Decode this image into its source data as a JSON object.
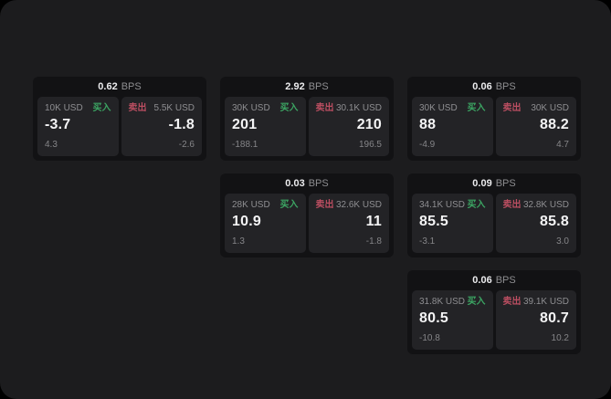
{
  "colors": {
    "page_bg": "#1c1c1e",
    "card_bg": "#121214",
    "panel_bg": "#232326",
    "buy_green": "#3ca563",
    "sell_red": "#bb4e61",
    "value_white": "#f4f4f5",
    "label_gray": "#8e8e91",
    "sub_gray": "#858588"
  },
  "cards": [
    {
      "grid": {
        "col": 1,
        "row": 1
      },
      "bps_value": "0.62",
      "bps_unit": "BPS",
      "buy": {
        "size": "10K USD",
        "label": "买入",
        "value": "-3.7",
        "sub": "4.3"
      },
      "sell": {
        "label": "卖出",
        "size": "5.5K USD",
        "value": "-1.8",
        "sub": "-2.6"
      }
    },
    {
      "grid": {
        "col": 2,
        "row": 1
      },
      "bps_value": "2.92",
      "bps_unit": "BPS",
      "buy": {
        "size": "30K USD",
        "label": "买入",
        "value": "201",
        "sub": "-188.1"
      },
      "sell": {
        "label": "卖出",
        "size": "30.1K USD",
        "value": "210",
        "sub": "196.5"
      }
    },
    {
      "grid": {
        "col": 3,
        "row": 1
      },
      "bps_value": "0.06",
      "bps_unit": "BPS",
      "buy": {
        "size": "30K USD",
        "label": "买入",
        "value": "88",
        "sub": "-4.9"
      },
      "sell": {
        "label": "卖出",
        "size": "30K USD",
        "value": "88.2",
        "sub": "4.7"
      }
    },
    {
      "grid": {
        "col": 2,
        "row": 2
      },
      "bps_value": "0.03",
      "bps_unit": "BPS",
      "buy": {
        "size": "28K USD",
        "label": "买入",
        "value": "10.9",
        "sub": "1.3"
      },
      "sell": {
        "label": "卖出",
        "size": "32.6K USD",
        "value": "11",
        "sub": "-1.8"
      }
    },
    {
      "grid": {
        "col": 3,
        "row": 2
      },
      "bps_value": "0.09",
      "bps_unit": "BPS",
      "buy": {
        "size": "34.1K USD",
        "label": "买入",
        "value": "85.5",
        "sub": "-3.1"
      },
      "sell": {
        "label": "卖出",
        "size": "32.8K USD",
        "value": "85.8",
        "sub": "3.0"
      }
    },
    {
      "grid": {
        "col": 3,
        "row": 3
      },
      "bps_value": "0.06",
      "bps_unit": "BPS",
      "buy": {
        "size": "31.8K USD",
        "label": "买入",
        "value": "80.5",
        "sub": "-10.8"
      },
      "sell": {
        "label": "卖出",
        "size": "39.1K USD",
        "value": "80.7",
        "sub": "10.2"
      }
    }
  ]
}
